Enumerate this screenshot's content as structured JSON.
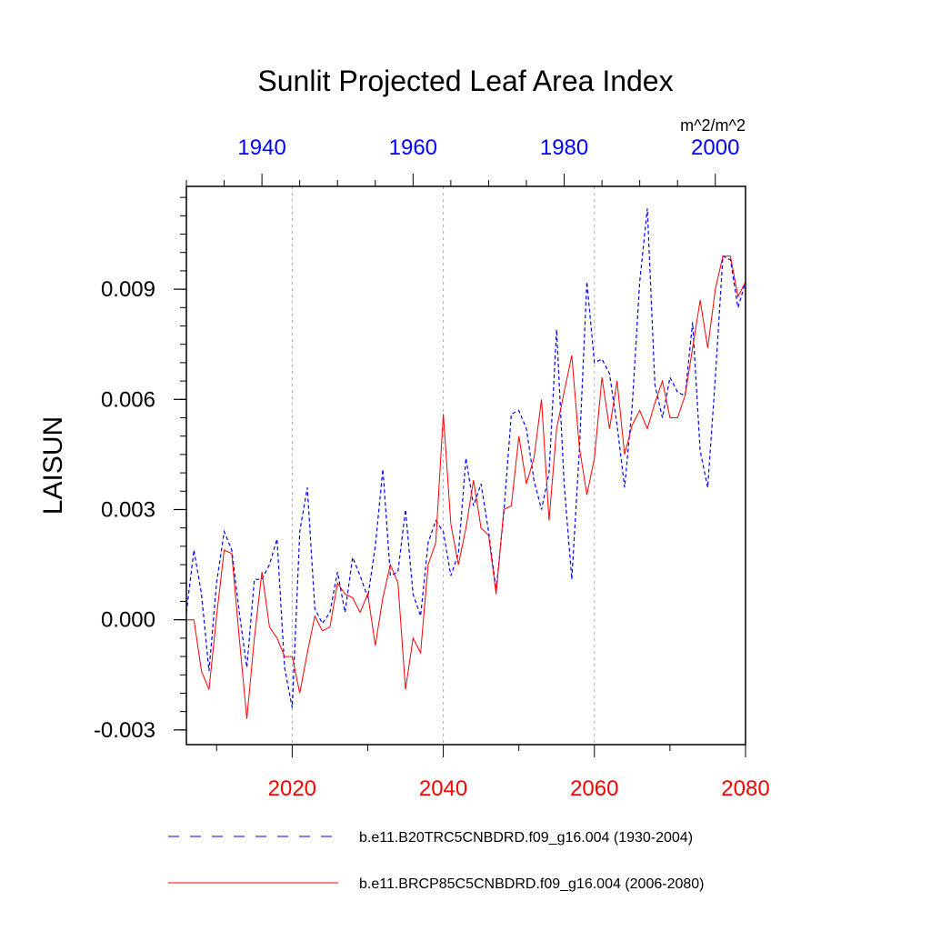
{
  "chart_data": {
    "type": "line",
    "title": "Sunlit Projected Leaf Area Index",
    "units": "m^2/m^2",
    "ylabel": "LAISUN",
    "ylim": [
      -0.0034,
      0.0118
    ],
    "yticks": [
      -0.003,
      0.0,
      0.003,
      0.006,
      0.009
    ],
    "yticklabels": [
      "-0.003",
      "0.000",
      "0.003",
      "0.006",
      "0.009"
    ],
    "bottom_axis": {
      "range": [
        2006,
        2080
      ],
      "ticks": [
        2020,
        2040,
        2060,
        2080
      ],
      "ticklabels": [
        "2020",
        "2040",
        "2060",
        "2080"
      ],
      "color": "#ff0000"
    },
    "top_axis": {
      "range": [
        1930,
        2004
      ],
      "ticks": [
        1940,
        1960,
        1980,
        2000
      ],
      "ticklabels": [
        "1940",
        "1960",
        "1980",
        "2000"
      ],
      "color": "#0000ff"
    },
    "series": [
      {
        "name": "b.e11.B20TRC5CNBDRD.f09_g16.004 (1930-2004)",
        "axis": "top",
        "color": "#0000ff",
        "dashed": true,
        "x_start": 1930,
        "values": [
          0.0002,
          0.0019,
          0.0007,
          -0.0014,
          0.001,
          0.0024,
          0.0019,
          0.0002,
          -0.0013,
          0.0011,
          0.0011,
          0.0015,
          0.0022,
          -0.0013,
          -0.0024,
          0.0024,
          0.0036,
          0.0003,
          -0.0001,
          0.0002,
          0.0013,
          0.0002,
          0.0017,
          0.0012,
          0.0006,
          0.002,
          0.0041,
          0.0012,
          0.0013,
          0.003,
          0.0007,
          0.0001,
          0.0021,
          0.0027,
          0.0024,
          0.0012,
          0.0018,
          0.0044,
          0.0031,
          0.0037,
          0.0024,
          0.0008,
          0.0029,
          0.0056,
          0.0057,
          0.0052,
          0.0038,
          0.003,
          0.004,
          0.0079,
          0.0037,
          0.0011,
          0.0046,
          0.0092,
          0.007,
          0.0071,
          0.0067,
          0.0053,
          0.0036,
          0.0058,
          0.0092,
          0.0112,
          0.0064,
          0.0055,
          0.0066,
          0.0062,
          0.0061,
          0.0081,
          0.0046,
          0.0036,
          0.0066,
          0.0099,
          0.0098,
          0.0085,
          0.0092
        ]
      },
      {
        "name": "b.e11.BRCP85C5CNBDRD.f09_g16.004 (2006-2080)",
        "axis": "bottom",
        "color": "#ff0000",
        "dashed": false,
        "x_start": 2006,
        "values": [
          0.0,
          0.0,
          -0.0014,
          -0.0019,
          0.0001,
          0.0019,
          0.0018,
          -0.0005,
          -0.0027,
          -0.0005,
          0.0013,
          -0.0002,
          -0.0005,
          -0.001,
          -0.001,
          -0.002,
          -0.0009,
          0.0001,
          -0.0003,
          -0.0002,
          0.001,
          0.0007,
          0.0006,
          0.0002,
          0.0007,
          -0.0007,
          0.0006,
          0.0015,
          0.001,
          -0.0019,
          -0.0005,
          -0.0009,
          0.0015,
          0.0021,
          0.0056,
          0.0026,
          0.0015,
          0.0025,
          0.0038,
          0.0025,
          0.0023,
          0.0007,
          0.003,
          0.0031,
          0.005,
          0.0037,
          0.0044,
          0.006,
          0.0027,
          0.0052,
          0.0062,
          0.0072,
          0.0047,
          0.0034,
          0.0044,
          0.0066,
          0.0052,
          0.0065,
          0.0045,
          0.0053,
          0.0057,
          0.0052,
          0.0059,
          0.0065,
          0.0055,
          0.0055,
          0.0061,
          0.0074,
          0.0087,
          0.0074,
          0.009,
          0.0099,
          0.0099,
          0.0088,
          0.0092
        ]
      }
    ],
    "legend": [
      {
        "label": "b.e11.B20TRC5CNBDRD.f09_g16.004 (1930-2004)",
        "color": "#0000ff",
        "dashed": true
      },
      {
        "label": "b.e11.BRCP85C5CNBDRD.f09_g16.004 (2006-2080)",
        "color": "#ff0000",
        "dashed": false
      }
    ],
    "grid": "vertical dotted at major bottom ticks",
    "legend_placement": "bottom"
  }
}
